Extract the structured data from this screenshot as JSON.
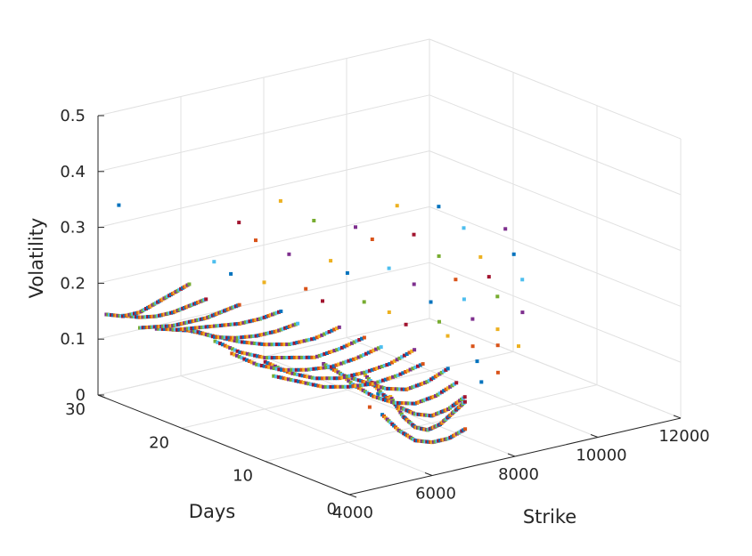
{
  "chart_data": {
    "type": "scatter",
    "projection": "3d",
    "title": "",
    "xlabel": "Strike",
    "ylabel": "Days",
    "zlabel": "Volatility",
    "xlim": [
      4000,
      12000
    ],
    "ylim": [
      0,
      30
    ],
    "zlim": [
      0,
      0.5
    ],
    "xticks": [
      4000,
      6000,
      8000,
      10000,
      12000
    ],
    "yticks": [
      0,
      10,
      20,
      30
    ],
    "zticks": [
      0,
      0.1,
      0.2,
      0.3,
      0.4,
      0.5
    ],
    "xtick_labels": [
      "4000",
      "6000",
      "8000",
      "10000",
      "12000"
    ],
    "ytick_labels": [
      "0",
      "10",
      "20",
      "30"
    ],
    "ztick_labels": [
      "0",
      "0.1",
      "0.2",
      "0.3",
      "0.4",
      "0.5"
    ],
    "grid": true,
    "marker": "square",
    "palette": [
      "#0072BD",
      "#D95319",
      "#EDB120",
      "#7E2F8E",
      "#77AC30",
      "#4DBEEE",
      "#A2142F"
    ],
    "series": [
      {
        "y": 1,
        "x": [
          5000,
          5400,
          5800,
          6200,
          6600,
          7000
        ],
        "z": [
          0.12,
          0.085,
          0.06,
          0.05,
          0.05,
          0.06
        ],
        "sparse_x": [],
        "sparse_z": []
      },
      {
        "y": 3,
        "x": [
          5600,
          5900,
          6200,
          6500,
          6800,
          7100,
          7400
        ],
        "z": [
          0.13,
          0.09,
          0.065,
          0.055,
          0.06,
          0.075,
          0.09
        ],
        "sparse_x": [
          5300,
          5100
        ],
        "sparse_z": [
          0.14,
          0.12
        ]
      },
      {
        "y": 5,
        "x": [
          5400,
          5800,
          6200,
          6600,
          7000,
          7400,
          7800
        ],
        "z": [
          0.16,
          0.12,
          0.09,
          0.07,
          0.06,
          0.065,
          0.08
        ],
        "sparse_x": [
          8200,
          8600
        ],
        "sparse_z": [
          0.1,
          0.11
        ]
      },
      {
        "y": 7,
        "x": [
          5000,
          5500,
          6000,
          6500,
          7000,
          7500,
          8000
        ],
        "z": [
          0.17,
          0.13,
          0.1,
          0.08,
          0.07,
          0.075,
          0.09
        ],
        "sparse_x": [
          8500,
          9000,
          9500
        ],
        "sparse_z": [
          0.12,
          0.14,
          0.13
        ]
      },
      {
        "y": 9,
        "x": [
          5200,
          5700,
          6200,
          6700,
          7200,
          7700,
          8200
        ],
        "z": [
          0.16,
          0.13,
          0.11,
          0.09,
          0.08,
          0.085,
          0.1
        ],
        "sparse_x": [
          8800,
          9400,
          10000
        ],
        "sparse_z": [
          0.13,
          0.15,
          0.17
        ]
      },
      {
        "y": 11,
        "x": [
          4400,
          5000,
          5600,
          6200,
          6800,
          7400,
          8000
        ],
        "z": [
          0.14,
          0.12,
          0.1,
          0.09,
          0.085,
          0.09,
          0.1
        ],
        "sparse_x": [
          8600,
          9200,
          9800,
          10400
        ],
        "sparse_z": [
          0.14,
          0.16,
          0.19,
          0.21
        ]
      },
      {
        "y": 13,
        "x": [
          4600,
          5200,
          5800,
          6400,
          7000,
          7600,
          8200
        ],
        "z": [
          0.15,
          0.12,
          0.1,
          0.09,
          0.09,
          0.095,
          0.11
        ],
        "sparse_x": [
          8800,
          9400,
          10000,
          10600
        ],
        "sparse_z": [
          0.15,
          0.18,
          0.21,
          0.24
        ]
      },
      {
        "y": 15,
        "x": [
          4200,
          4800,
          5400,
          6000,
          6600,
          7200,
          7800
        ],
        "z": [
          0.16,
          0.13,
          0.11,
          0.1,
          0.095,
          0.1,
          0.11
        ],
        "sparse_x": [
          8400,
          9000,
          9600,
          10200,
          10800
        ],
        "sparse_z": [
          0.14,
          0.17,
          0.2,
          0.23,
          0.27
        ]
      },
      {
        "y": 17,
        "x": [
          4200,
          4800,
          5400,
          6000,
          6600,
          7200,
          7800
        ],
        "z": [
          0.17,
          0.14,
          0.12,
          0.11,
          0.1,
          0.105,
          0.115
        ],
        "sparse_x": [
          8400,
          9000,
          9600,
          10200
        ],
        "sparse_z": [
          0.15,
          0.19,
          0.23,
          0.27
        ]
      },
      {
        "y": 19,
        "x": [
          4000,
          4600,
          5200,
          5800,
          6400,
          7000,
          7600
        ],
        "z": [
          0.18,
          0.16,
          0.14,
          0.125,
          0.115,
          0.115,
          0.125
        ],
        "sparse_x": [
          8200,
          8800,
          9400,
          10000
        ],
        "sparse_z": [
          0.16,
          0.21,
          0.26,
          0.3
        ]
      },
      {
        "y": 21,
        "x": [
          4000,
          4500,
          5000,
          5500,
          6000,
          6500,
          7000
        ],
        "z": [
          0.17,
          0.16,
          0.14,
          0.13,
          0.125,
          0.125,
          0.13
        ],
        "sparse_x": [
          7600,
          8200,
          8800,
          9400
        ],
        "sparse_z": [
          0.16,
          0.2,
          0.25,
          0.3
        ]
      },
      {
        "y": 23,
        "x": [
          4000,
          4500,
          5000,
          5500,
          6000,
          6500,
          7000
        ],
        "z": [
          0.16,
          0.15,
          0.145,
          0.14,
          0.135,
          0.135,
          0.14
        ],
        "sparse_x": [
          7600,
          8200,
          8800
        ],
        "sparse_z": [
          0.17,
          0.21,
          0.26
        ]
      },
      {
        "y": 25,
        "x": [
          4000,
          4400,
          4800,
          5200,
          5600,
          6000,
          6400
        ],
        "z": [
          0.15,
          0.145,
          0.14,
          0.14,
          0.14,
          0.145,
          0.15
        ],
        "sparse_x": [
          7000,
          7600,
          8200
        ],
        "sparse_z": [
          0.18,
          0.22,
          0.27
        ]
      },
      {
        "y": 27,
        "x": [
          4000,
          4400,
          4800,
          5200,
          5600,
          6000
        ],
        "z": [
          0.16,
          0.15,
          0.145,
          0.145,
          0.15,
          0.155
        ],
        "sparse_x": [
          6600,
          7200,
          7800
        ],
        "sparse_z": [
          0.19,
          0.24,
          0.3
        ]
      },
      {
        "y": 29,
        "x": [
          4000,
          4400,
          4800,
          5200,
          5600,
          6000
        ],
        "z": [
          0.15,
          0.14,
          0.14,
          0.15,
          0.16,
          0.17
        ],
        "sparse_x": [
          6600,
          7200
        ],
        "sparse_z": [
          0.2,
          0.26
        ]
      }
    ],
    "outliers": [
      {
        "x": 4100,
        "y": 28,
        "z": 0.35
      }
    ]
  }
}
